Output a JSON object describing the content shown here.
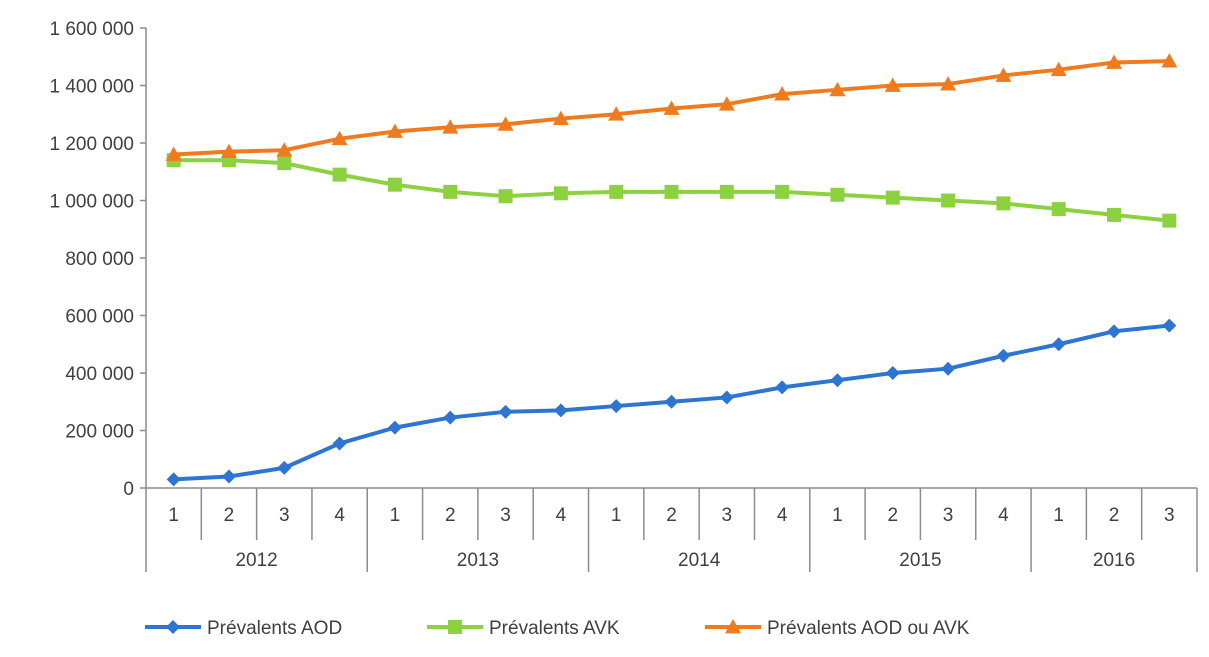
{
  "chart_data": {
    "type": "line",
    "title": "",
    "xlabel": "",
    "ylabel": "",
    "ylim": [
      0,
      1600000
    ],
    "y_ticks": [
      0,
      200000,
      400000,
      600000,
      800000,
      1000000,
      1200000,
      1400000,
      1600000
    ],
    "y_tick_labels": [
      "0",
      "200 000",
      "400 000",
      "600 000",
      "800 000",
      "1 000 000",
      "1 200 000",
      "1 400 000",
      "1 600 000"
    ],
    "categories": [
      "1",
      "2",
      "3",
      "4",
      "1",
      "2",
      "3",
      "4",
      "1",
      "2",
      "3",
      "4",
      "1",
      "2",
      "3",
      "4",
      "1",
      "2",
      "3"
    ],
    "groups": [
      {
        "label": "2012",
        "count": 4
      },
      {
        "label": "2013",
        "count": 4
      },
      {
        "label": "2014",
        "count": 4
      },
      {
        "label": "2015",
        "count": 4
      },
      {
        "label": "2016",
        "count": 3
      }
    ],
    "grid": false,
    "legend_position": "bottom",
    "series": [
      {
        "name": "Prévalents AOD",
        "color": "#2E75D1",
        "marker": "diamond",
        "values": [
          30000,
          40000,
          70000,
          155000,
          210000,
          245000,
          265000,
          270000,
          285000,
          300000,
          315000,
          350000,
          375000,
          400000,
          415000,
          460000,
          500000,
          545000,
          565000
        ]
      },
      {
        "name": "Prévalents AVK",
        "color": "#8CD140",
        "marker": "square",
        "values": [
          1140000,
          1140000,
          1130000,
          1090000,
          1055000,
          1030000,
          1015000,
          1025000,
          1030000,
          1030000,
          1030000,
          1030000,
          1020000,
          1010000,
          1000000,
          990000,
          970000,
          950000,
          930000
        ]
      },
      {
        "name": "Prévalents AOD ou AVK",
        "color": "#F07A1E",
        "marker": "triangle",
        "values": [
          1160000,
          1170000,
          1175000,
          1215000,
          1240000,
          1255000,
          1265000,
          1285000,
          1300000,
          1320000,
          1335000,
          1370000,
          1385000,
          1400000,
          1405000,
          1435000,
          1455000,
          1480000,
          1485000
        ]
      }
    ]
  }
}
